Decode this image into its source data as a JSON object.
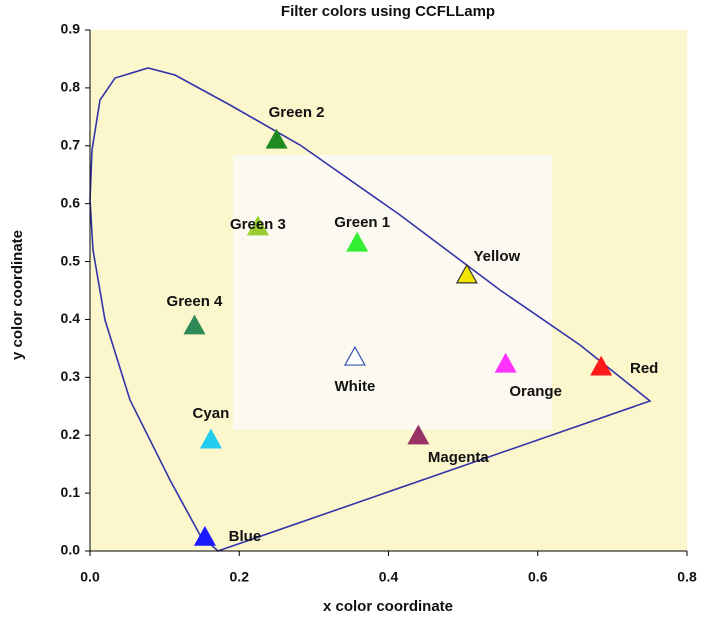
{
  "chart_data": {
    "type": "scatter",
    "title": "Filter colors using CCFLLamp",
    "x_label": "x color coordinate",
    "y_label": "y color coordinate",
    "xlim": [
      0,
      0.8
    ],
    "ylim": [
      0,
      0.9
    ],
    "xticks": [
      {
        "value": 0,
        "label": "0.0"
      },
      0.2,
      0.4,
      0.6,
      0.8
    ],
    "yticks": [
      {
        "value": 0,
        "label": "0.0"
      },
      0.1,
      0.2,
      0.3,
      0.4,
      0.5,
      0.6,
      0.7,
      0.8,
      0.9
    ],
    "points": [
      {
        "name": "Green 2",
        "x": 0.25,
        "y": 0.71,
        "color": "#1f8a1f"
      },
      {
        "name": "Green 3",
        "x": 0.225,
        "y": 0.56,
        "color": "#9acd32"
      },
      {
        "name": "Green 1",
        "x": 0.358,
        "y": 0.532,
        "color": "#33ee33"
      },
      {
        "name": "Yellow",
        "x": 0.505,
        "y": 0.477,
        "color": "#f2e600"
      },
      {
        "name": "Green 4",
        "x": 0.14,
        "y": 0.389,
        "color": "#2e8b57"
      },
      {
        "name": "White",
        "x": 0.355,
        "y": 0.335,
        "color": "#ffffff"
      },
      {
        "name": "Orange",
        "x": 0.557,
        "y": 0.323,
        "color": "#ff33ff"
      },
      {
        "name": "Red",
        "x": 0.685,
        "y": 0.318,
        "color": "#ff1a1a"
      },
      {
        "name": "Cyan",
        "x": 0.162,
        "y": 0.192,
        "color": "#22ccee"
      },
      {
        "name": "Magenta",
        "x": 0.44,
        "y": 0.199,
        "color": "#993366"
      },
      {
        "name": "Blue",
        "x": 0.154,
        "y": 0.024,
        "color": "#1a1aff"
      }
    ]
  }
}
